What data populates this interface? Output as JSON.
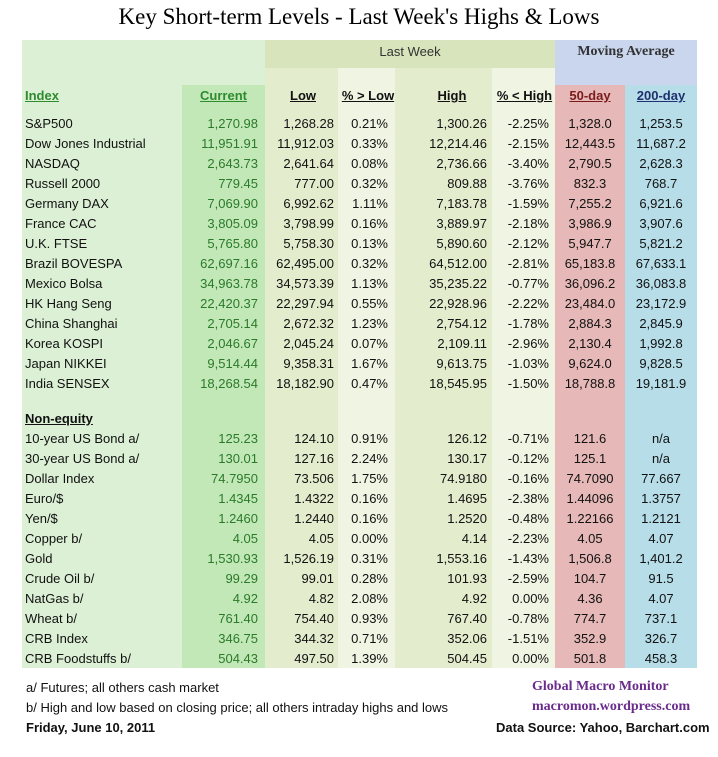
{
  "header": {
    "title": "Key Short-term Levels -  Last Week's Highs & Lows"
  },
  "table": {
    "last_week": "Last Week",
    "moving_average": "Moving Average",
    "columns": [
      "Index",
      "Current",
      "Low",
      "% > Low",
      "High",
      "% < High",
      "50-day",
      "200-day"
    ],
    "rows": [
      [
        "S&P500",
        "1,270.98",
        "1,268.28",
        "0.21%",
        "1,300.26",
        "-2.25%",
        "1,328.0",
        "1,253.5"
      ],
      [
        "Dow Jones Industrial",
        "11,951.91",
        "11,912.03",
        "0.33%",
        "12,214.46",
        "-2.15%",
        "12,443.5",
        "11,687.2"
      ],
      [
        "NASDAQ",
        "2,643.73",
        "2,641.64",
        "0.08%",
        "2,736.66",
        "-3.40%",
        "2,790.5",
        "2,628.3"
      ],
      [
        "Russell 2000",
        "779.45",
        "777.00",
        "0.32%",
        "809.88",
        "-3.76%",
        "832.3",
        "768.7"
      ],
      [
        "Germany DAX",
        "7,069.90",
        "6,992.62",
        "1.11%",
        "7,183.78",
        "-1.59%",
        "7,255.2",
        "6,921.6"
      ],
      [
        "France CAC",
        "3,805.09",
        "3,798.99",
        "0.16%",
        "3,889.97",
        "-2.18%",
        "3,986.9",
        "3,907.6"
      ],
      [
        "U.K. FTSE",
        "5,765.80",
        "5,758.30",
        "0.13%",
        "5,890.60",
        "-2.12%",
        "5,947.7",
        "5,821.2"
      ],
      [
        "Brazil BOVESPA",
        "62,697.16",
        "62,495.00",
        "0.32%",
        "64,512.00",
        "-2.81%",
        "65,183.8",
        "67,633.1"
      ],
      [
        "Mexico Bolsa",
        "34,963.78",
        "34,573.39",
        "1.13%",
        "35,235.22",
        "-0.77%",
        "36,096.2",
        "36,083.8"
      ],
      [
        "HK  Hang Seng",
        "22,420.37",
        "22,297.94",
        "0.55%",
        "22,928.96",
        "-2.22%",
        "23,484.0",
        "23,172.9"
      ],
      [
        "China Shanghai",
        "2,705.14",
        "2,672.32",
        "1.23%",
        "2,754.12",
        "-1.78%",
        "2,884.3",
        "2,845.9"
      ],
      [
        "Korea KOSPI",
        "2,046.67",
        "2,045.24",
        "0.07%",
        "2,109.11",
        "-2.96%",
        "2,130.4",
        "1,992.8"
      ],
      [
        "Japan NIKKEI",
        "9,514.44",
        "9,358.31",
        "1.67%",
        "9,613.75",
        "-1.03%",
        "9,624.0",
        "9,828.5"
      ],
      [
        "India SENSEX",
        "18,268.54",
        "18,182.90",
        "0.47%",
        "18,545.95",
        "-1.50%",
        "18,788.8",
        "19,181.9"
      ]
    ],
    "section_label": "Non-equity",
    "rows_non_equity": [
      [
        "10-year US Bond  a/",
        "125.23",
        "124.10",
        "0.91%",
        "126.12",
        "-0.71%",
        "121.6",
        "n/a"
      ],
      [
        "30-year US Bond  a/",
        "130.01",
        "127.16",
        "2.24%",
        "130.17",
        "-0.12%",
        "125.1",
        "n/a"
      ],
      [
        "Dollar Index",
        "74.7950",
        "73.506",
        "1.75%",
        "74.9180",
        "-0.16%",
        "74.7090",
        "77.667"
      ],
      [
        "Euro/$",
        "1.4345",
        "1.4322",
        "0.16%",
        "1.4695",
        "-2.38%",
        "1.44096",
        "1.3757"
      ],
      [
        "Yen/$",
        "1.2460",
        "1.2440",
        "0.16%",
        "1.2520",
        "-0.48%",
        "1.22166",
        "1.2121"
      ],
      [
        "Copper  b/",
        "4.05",
        "4.05",
        "0.00%",
        "4.14",
        "-2.23%",
        "4.05",
        "4.07"
      ],
      [
        "Gold",
        "1,530.93",
        "1,526.19",
        "0.31%",
        "1,553.16",
        "-1.43%",
        "1,506.8",
        "1,401.2"
      ],
      [
        "Crude Oil  b/",
        "99.29",
        "99.01",
        "0.28%",
        "101.93",
        "-2.59%",
        "104.7",
        "91.5"
      ],
      [
        "NatGas  b/",
        "4.92",
        "4.82",
        "2.08%",
        "4.92",
        "0.00%",
        "4.36",
        "4.07"
      ],
      [
        "Wheat  b/",
        "761.40",
        "754.40",
        "0.93%",
        "767.40",
        "-0.78%",
        "774.7",
        "737.1"
      ],
      [
        "CRB Index",
        "346.75",
        "344.32",
        "0.71%",
        "352.06",
        "-1.51%",
        "352.9",
        "326.7"
      ],
      [
        "CRB Foodstuffs  b/",
        "504.43",
        "497.50",
        "1.39%",
        "504.45",
        "0.00%",
        "501.8",
        "458.3"
      ]
    ]
  },
  "footer": {
    "notes": [
      "a/  Futures; all others cash market",
      "b/  High and low based on closing price;  all others intraday highs and lows"
    ],
    "date": "Friday, June 10, 2011",
    "brand": "Global Macro Monitor",
    "url": "macromon.wordpress.com",
    "source": "Data Source: Yahoo, Barchart.com"
  }
}
